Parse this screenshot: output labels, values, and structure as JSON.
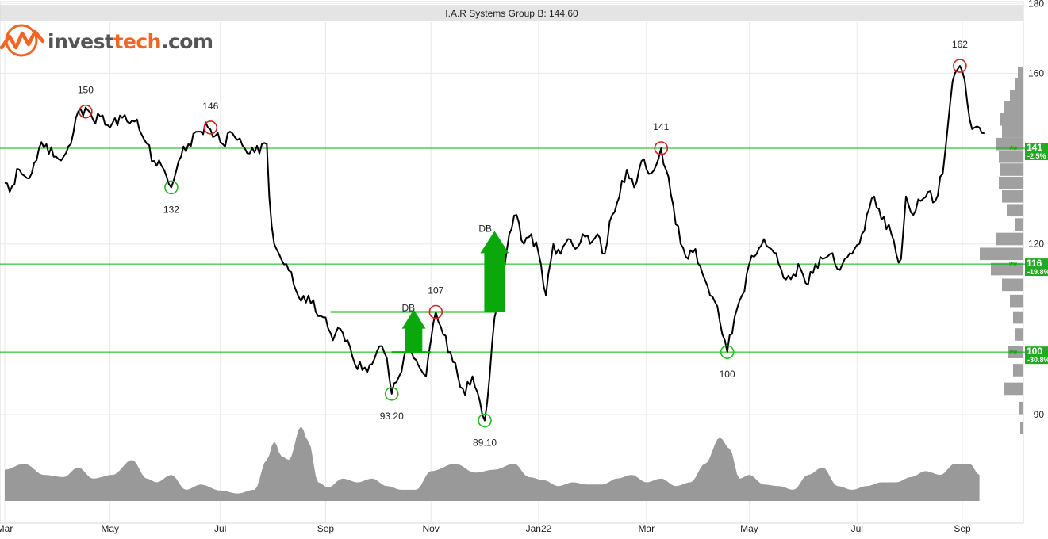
{
  "title": "I.A.R Systems Group B: 144.60",
  "logo": {
    "prefix": "invest",
    "accent": "tech",
    "suffix": ".com"
  },
  "colors": {
    "price_line": "#000000",
    "support_line": "#00b400",
    "peak_marker": "#d42020",
    "trough_marker": "#22bb22",
    "arrow": "#0aa80a",
    "volume": "#999999",
    "histogram": "#a0a0a0",
    "tag_bg": "#22aa22",
    "tag_text": "#ffffff",
    "grid": "#e8e8e8",
    "logo_orange": "#f26522"
  },
  "chart_data": {
    "type": "line",
    "y_axis": {
      "range": [
        85,
        180
      ],
      "ticks": [
        90,
        120,
        160,
        180
      ],
      "scale": "log",
      "position": "right"
    },
    "x_ticks": [
      "Mar",
      "May",
      "Jul",
      "Sep",
      "Nov",
      "Jan22",
      "Mar",
      "May",
      "Jul",
      "Sep"
    ],
    "x_tick_index": [
      0,
      43,
      88,
      131,
      174,
      218,
      262,
      304,
      348,
      391
    ],
    "x_index_range": [
      0,
      414
    ],
    "grid": true,
    "price": {
      "anchors": [
        [
          0,
          133
        ],
        [
          2,
          131
        ],
        [
          6,
          136
        ],
        [
          10,
          134
        ],
        [
          14,
          141
        ],
        [
          17,
          142
        ],
        [
          20,
          139
        ],
        [
          24,
          139
        ],
        [
          27,
          142
        ],
        [
          30,
          150
        ],
        [
          33,
          151
        ],
        [
          36,
          148
        ],
        [
          40,
          149
        ],
        [
          43,
          146
        ],
        [
          47,
          149
        ],
        [
          51,
          147
        ],
        [
          54,
          148
        ],
        [
          57,
          143
        ],
        [
          61,
          138
        ],
        [
          65,
          136
        ],
        [
          68,
          132
        ],
        [
          71,
          138
        ],
        [
          75,
          142
        ],
        [
          79,
          145
        ],
        [
          83,
          146
        ],
        [
          86,
          144
        ],
        [
          89,
          142
        ],
        [
          92,
          145
        ],
        [
          95,
          143
        ],
        [
          98,
          141
        ],
        [
          102,
          140
        ],
        [
          105,
          142
        ],
        [
          107,
          142
        ],
        [
          108,
          130
        ],
        [
          110,
          120
        ],
        [
          112,
          118
        ],
        [
          115,
          116
        ],
        [
          118,
          112
        ],
        [
          121,
          109
        ],
        [
          124,
          110
        ],
        [
          127,
          107
        ],
        [
          131,
          106
        ],
        [
          134,
          102
        ],
        [
          137,
          104
        ],
        [
          140,
          102
        ],
        [
          143,
          98
        ],
        [
          146,
          97
        ],
        [
          150,
          98
        ],
        [
          153,
          101
        ],
        [
          156,
          99
        ],
        [
          158,
          93.2
        ],
        [
          161,
          96
        ],
        [
          164,
          101
        ],
        [
          167,
          99
        ],
        [
          170,
          97
        ],
        [
          172,
          96
        ],
        [
          175,
          105
        ],
        [
          176,
          107
        ],
        [
          179,
          103
        ],
        [
          182,
          100
        ],
        [
          185,
          96
        ],
        [
          188,
          93
        ],
        [
          191,
          96
        ],
        [
          194,
          92
        ],
        [
          196,
          89.1
        ],
        [
          198,
          96
        ],
        [
          200,
          106
        ],
        [
          203,
          112
        ],
        [
          206,
          122
        ],
        [
          209,
          126
        ],
        [
          212,
          120
        ],
        [
          215,
          122
        ],
        [
          218,
          118
        ],
        [
          221,
          110
        ],
        [
          224,
          120
        ],
        [
          227,
          118
        ],
        [
          230,
          121
        ],
        [
          233,
          119
        ],
        [
          236,
          122
        ],
        [
          239,
          120
        ],
        [
          242,
          122
        ],
        [
          245,
          118
        ],
        [
          248,
          126
        ],
        [
          251,
          130
        ],
        [
          254,
          136
        ],
        [
          257,
          132
        ],
        [
          260,
          138
        ],
        [
          263,
          135
        ],
        [
          266,
          137
        ],
        [
          268,
          141
        ],
        [
          270,
          136
        ],
        [
          273,
          128
        ],
        [
          276,
          120
        ],
        [
          279,
          117
        ],
        [
          282,
          119
        ],
        [
          285,
          114
        ],
        [
          288,
          110
        ],
        [
          291,
          108
        ],
        [
          293,
          103
        ],
        [
          295,
          100
        ],
        [
          298,
          106
        ],
        [
          301,
          110
        ],
        [
          304,
          116
        ],
        [
          307,
          118
        ],
        [
          310,
          121
        ],
        [
          313,
          119
        ],
        [
          316,
          116
        ],
        [
          319,
          113
        ],
        [
          322,
          114
        ],
        [
          325,
          115
        ],
        [
          328,
          112
        ],
        [
          331,
          116
        ],
        [
          334,
          117
        ],
        [
          337,
          118
        ],
        [
          340,
          115
        ],
        [
          343,
          117
        ],
        [
          346,
          118
        ],
        [
          349,
          120
        ],
        [
          352,
          126
        ],
        [
          355,
          130
        ],
        [
          358,
          125
        ],
        [
          361,
          124
        ],
        [
          364,
          118
        ],
        [
          366,
          117
        ],
        [
          368,
          130
        ],
        [
          371,
          126
        ],
        [
          374,
          129
        ],
        [
          377,
          131
        ],
        [
          380,
          129
        ],
        [
          383,
          135
        ],
        [
          386,
          152
        ],
        [
          388,
          160
        ],
        [
          390,
          162
        ],
        [
          392,
          158
        ],
        [
          394,
          148
        ],
        [
          396,
          146
        ],
        [
          398,
          146
        ],
        [
          400,
          144.6
        ]
      ],
      "last": 144.6
    },
    "annotations": {
      "peaks": [
        {
          "label": "150",
          "index": 33,
          "value": 150
        },
        {
          "label": "146",
          "index": 84,
          "value": 146
        },
        {
          "label": "107",
          "index": 176,
          "value": 107
        },
        {
          "label": "141",
          "index": 268,
          "value": 141
        },
        {
          "label": "162",
          "index": 390,
          "value": 162
        }
      ],
      "troughs": [
        {
          "label": "132",
          "index": 68,
          "value": 132
        },
        {
          "label": "93.20",
          "index": 158,
          "value": 93.2
        },
        {
          "label": "89.10",
          "index": 196,
          "value": 89.1
        },
        {
          "label": "100",
          "index": 295,
          "value": 100
        }
      ],
      "support_levels": [
        {
          "value": 141,
          "tag": "141",
          "pct": "-2.5%",
          "stars": "**"
        },
        {
          "value": 116,
          "tag": "116",
          "pct": "-19.8%",
          "stars": "**"
        },
        {
          "value": 100,
          "tag": "100",
          "pct": "-30.8%",
          "stars": "**"
        }
      ],
      "double_bottoms": [
        {
          "label": "DB",
          "neck_value": 107,
          "base_value": 100,
          "start_index": 133,
          "end_index": 174
        },
        {
          "label": "DB",
          "neck_value": 107,
          "start_index": 133,
          "end_index": 201,
          "target_value": 122
        }
      ]
    },
    "volume": {
      "anchors": [
        [
          0,
          0.42
        ],
        [
          8,
          0.5
        ],
        [
          16,
          0.35
        ],
        [
          24,
          0.32
        ],
        [
          30,
          0.45
        ],
        [
          36,
          0.3
        ],
        [
          44,
          0.35
        ],
        [
          52,
          0.55
        ],
        [
          58,
          0.3
        ],
        [
          62,
          0.25
        ],
        [
          68,
          0.35
        ],
        [
          74,
          0.15
        ],
        [
          80,
          0.22
        ],
        [
          88,
          0.14
        ],
        [
          95,
          0.1
        ],
        [
          102,
          0.15
        ],
        [
          107,
          0.55
        ],
        [
          110,
          0.8
        ],
        [
          113,
          0.6
        ],
        [
          116,
          0.55
        ],
        [
          121,
          1.0
        ],
        [
          124,
          0.8
        ],
        [
          128,
          0.25
        ],
        [
          132,
          0.18
        ],
        [
          138,
          0.3
        ],
        [
          144,
          0.25
        ],
        [
          150,
          0.3
        ],
        [
          156,
          0.2
        ],
        [
          162,
          0.15
        ],
        [
          168,
          0.15
        ],
        [
          174,
          0.4
        ],
        [
          184,
          0.5
        ],
        [
          192,
          0.38
        ],
        [
          200,
          0.42
        ],
        [
          208,
          0.5
        ],
        [
          214,
          0.32
        ],
        [
          220,
          0.28
        ],
        [
          226,
          0.2
        ],
        [
          232,
          0.25
        ],
        [
          238,
          0.22
        ],
        [
          244,
          0.22
        ],
        [
          250,
          0.3
        ],
        [
          256,
          0.35
        ],
        [
          262,
          0.25
        ],
        [
          268,
          0.3
        ],
        [
          274,
          0.2
        ],
        [
          280,
          0.25
        ],
        [
          286,
          0.5
        ],
        [
          292,
          0.85
        ],
        [
          296,
          0.7
        ],
        [
          300,
          0.3
        ],
        [
          304,
          0.35
        ],
        [
          310,
          0.22
        ],
        [
          316,
          0.2
        ],
        [
          322,
          0.15
        ],
        [
          328,
          0.35
        ],
        [
          334,
          0.45
        ],
        [
          340,
          0.2
        ],
        [
          346,
          0.15
        ],
        [
          352,
          0.2
        ],
        [
          358,
          0.25
        ],
        [
          364,
          0.25
        ],
        [
          370,
          0.32
        ],
        [
          376,
          0.4
        ],
        [
          382,
          0.35
        ],
        [
          388,
          0.5
        ],
        [
          394,
          0.5
        ],
        [
          398,
          0.35
        ]
      ]
    },
    "price_distribution": [
      [
        160,
        6
      ],
      [
        157,
        9
      ],
      [
        154,
        16
      ],
      [
        151,
        24
      ],
      [
        148,
        28
      ],
      [
        145,
        26
      ],
      [
        142,
        34
      ],
      [
        139,
        30
      ],
      [
        136,
        28
      ],
      [
        133,
        30
      ],
      [
        130,
        26
      ],
      [
        127,
        20
      ],
      [
        124,
        10
      ],
      [
        121,
        34
      ],
      [
        118,
        54
      ],
      [
        115,
        40
      ],
      [
        112,
        26
      ],
      [
        109,
        16
      ],
      [
        106,
        12
      ],
      [
        103,
        10
      ],
      [
        100,
        18
      ],
      [
        97,
        12
      ],
      [
        94,
        24
      ],
      [
        91,
        5
      ],
      [
        88,
        3
      ]
    ]
  }
}
